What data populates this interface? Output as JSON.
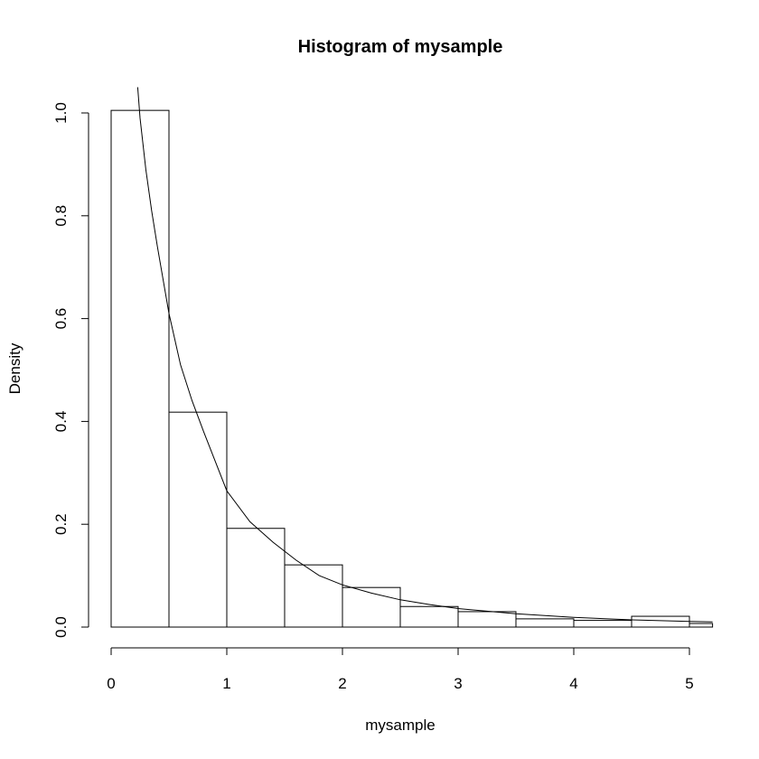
{
  "chart_data": {
    "type": "bar",
    "title": "Histogram of mysample",
    "xlabel": "mysample",
    "ylabel": "Density",
    "xlim": [
      0,
      5.2
    ],
    "ylim": [
      0,
      1.05
    ],
    "x_ticks": [
      "0",
      "1",
      "2",
      "3",
      "4",
      "5"
    ],
    "y_ticks": [
      "0.0",
      "0.2",
      "0.4",
      "0.6",
      "0.8",
      "1.0"
    ],
    "bins": [
      {
        "x0": 0.0,
        "x1": 0.5,
        "density": 1.005
      },
      {
        "x0": 0.5,
        "x1": 1.0,
        "density": 0.418
      },
      {
        "x0": 1.0,
        "x1": 1.5,
        "density": 0.192
      },
      {
        "x0": 1.5,
        "x1": 2.0,
        "density": 0.121
      },
      {
        "x0": 2.0,
        "x1": 2.5,
        "density": 0.077
      },
      {
        "x0": 2.5,
        "x1": 3.0,
        "density": 0.04
      },
      {
        "x0": 3.0,
        "x1": 3.5,
        "density": 0.03
      },
      {
        "x0": 3.5,
        "x1": 4.0,
        "density": 0.016
      },
      {
        "x0": 4.0,
        "x1": 4.5,
        "density": 0.013
      },
      {
        "x0": 4.5,
        "x1": 5.0,
        "density": 0.021
      },
      {
        "x0": 5.0,
        "x1": 5.2,
        "density": 0.007
      }
    ],
    "density_curve": {
      "x": [
        0.23,
        0.25,
        0.3,
        0.35,
        0.4,
        0.5,
        0.6,
        0.7,
        0.8,
        1.0,
        1.2,
        1.4,
        1.6,
        1.8,
        2.0,
        2.25,
        2.5,
        2.75,
        3.0,
        3.5,
        4.0,
        4.5,
        5.0,
        5.2
      ],
      "y": [
        1.05,
        0.99,
        0.89,
        0.81,
        0.74,
        0.61,
        0.51,
        0.44,
        0.38,
        0.265,
        0.205,
        0.165,
        0.13,
        0.1,
        0.082,
        0.066,
        0.053,
        0.044,
        0.036,
        0.026,
        0.019,
        0.014,
        0.011,
        0.01
      ]
    }
  }
}
